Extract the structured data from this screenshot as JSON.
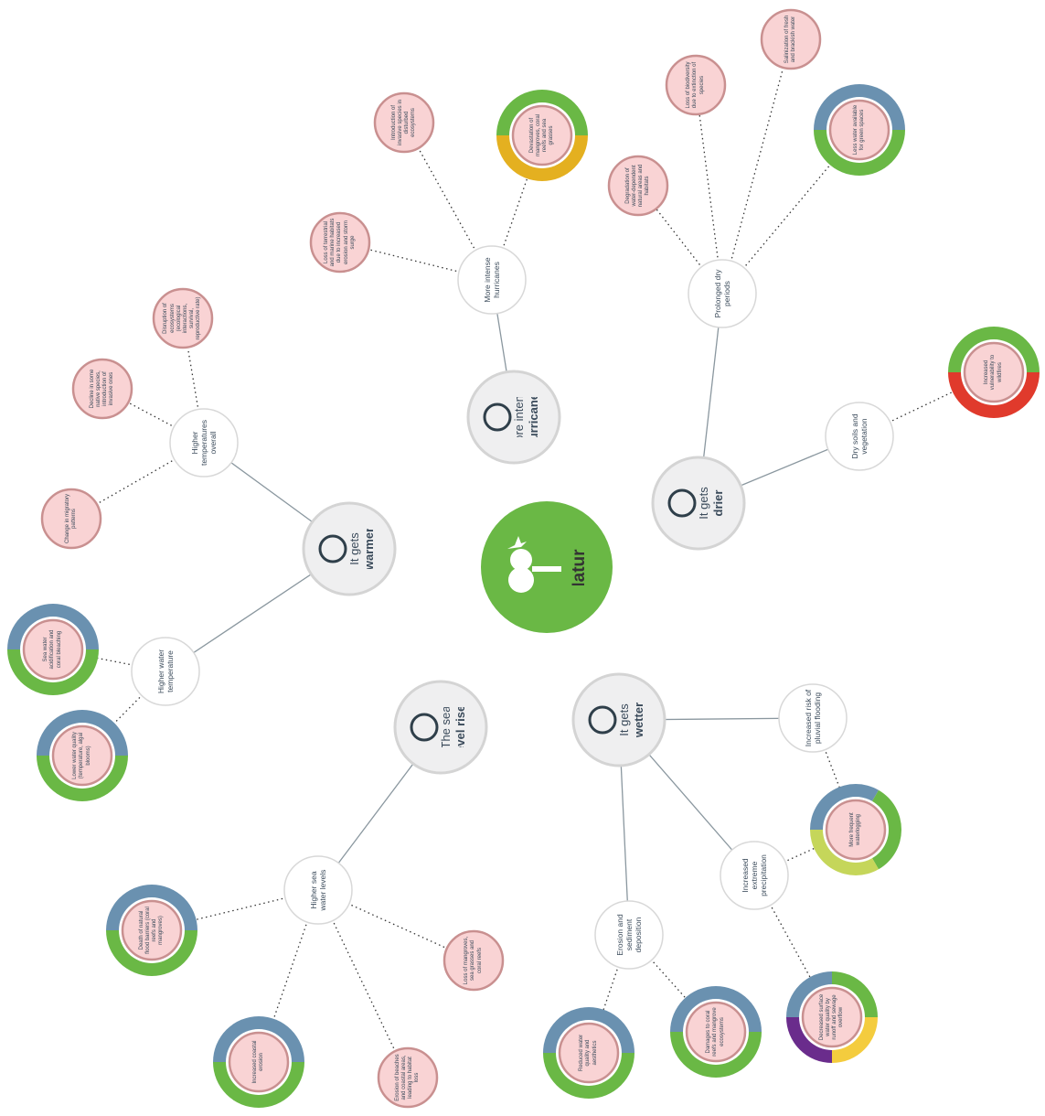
{
  "center": {
    "label": "Nature"
  },
  "hubs": [
    {
      "light": "It gets",
      "bold": "warmer"
    },
    {
      "light": "More intense",
      "bold": "hurricanes"
    },
    {
      "light": "It gets",
      "bold": "drier"
    },
    {
      "light": "The sea",
      "bold": "level rises"
    },
    {
      "light": "It gets",
      "bold": "wetter"
    }
  ],
  "nodes": [
    {
      "label": "Higher temperatures overall"
    },
    {
      "label": "Disruption of ecosystems (ecological interactions, survival, reproductive rate)"
    },
    {
      "label": "Decline in some native species, introduction of invasive ones"
    },
    {
      "label": "Change in migratory patterns"
    },
    {
      "label": "Higher water temperature"
    },
    {
      "label": "Sea water acidification and coral bleaching",
      "ring": [
        "#6a91b0",
        "#6ab845"
      ]
    },
    {
      "label": "Lower water quality (temperature, algal blooms)",
      "ring": [
        "#6a91b0",
        "#6ab845"
      ]
    },
    {
      "label": "More intense hurricanes"
    },
    {
      "label": "Introduction of invasive species in disturbed ecosystems"
    },
    {
      "label": "Loss of terrestrial and marine habitats due to increased erosion and storm surge"
    },
    {
      "label": "Devastation of mangroves, coral reefs and sea grasses",
      "ring": [
        "#6ab845",
        "#e4b020"
      ]
    },
    {
      "label": "Prolonged dry periods"
    },
    {
      "label": "Degradation of water-dependent natural areas and habitats"
    },
    {
      "label": "Loss of biodiversity due to extinction of species"
    },
    {
      "label": "Salinization of fresh and brackish water"
    },
    {
      "label": "Less water available for green spaces",
      "ring": [
        "#6a91b0",
        "#6ab845"
      ]
    },
    {
      "label": "Dry soils and vegetation"
    },
    {
      "label": "Increased vulnerability to wildfires",
      "ring": [
        "#6ab845",
        "#e03a2c"
      ]
    },
    {
      "label": "Higher sea water levels"
    },
    {
      "label": "Death of natural flood barriers (coral reefs and mangroves)",
      "ring": [
        "#6a91b0",
        "#6ab845"
      ]
    },
    {
      "label": "Increased coastal erosion",
      "ring": [
        "#6a91b0",
        "#6ab845"
      ]
    },
    {
      "label": "Erosion of beaches and coastal areas, leading to habitat loss"
    },
    {
      "label": "Loss of mangroves, sea grasses and coral reefs"
    },
    {
      "label": "Increased risk of pluvial flooding"
    },
    {
      "label": "Increased extreme precipitation"
    },
    {
      "label": "More frequent waterlogging",
      "ring": [
        "#6a91b0",
        "#6ab845",
        "#c5d65a"
      ]
    },
    {
      "label": "Decreased surface water quality by runoff and sewage overflow",
      "ring": [
        "#6a91b0",
        "#6ab845",
        "#f4cc3e",
        "#6a2c8c"
      ]
    },
    {
      "label": "Erosion and sediment deposition"
    },
    {
      "label": "Reduced water quality and aesthetics",
      "ring": [
        "#6a91b0",
        "#6ab845"
      ]
    },
    {
      "label": "Damages to coral reefs and mangrove ecosystems",
      "ring": [
        "#6a91b0",
        "#6ab845"
      ]
    }
  ]
}
